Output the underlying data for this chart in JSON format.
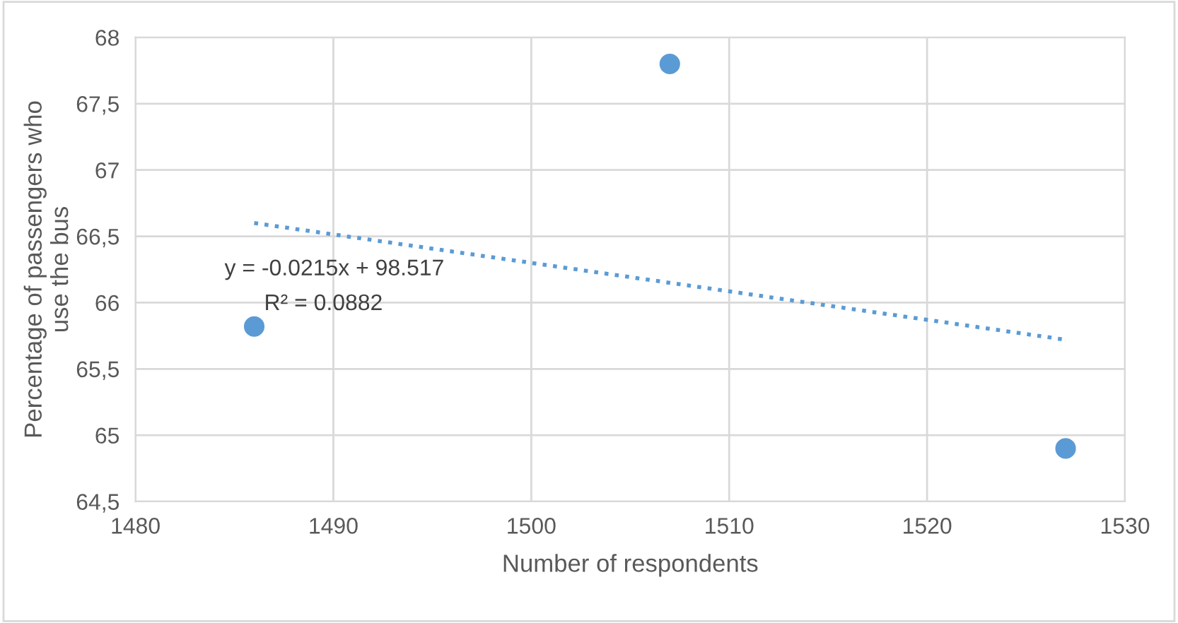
{
  "chart_data": {
    "type": "scatter",
    "xlabel": "Number of respondents",
    "ylabel": "Percentage of passengers who\nuse the bus",
    "series": [
      {
        "type": "scatter",
        "color": "#5b9bd5",
        "x": [
          1486,
          1507,
          1527
        ],
        "values": [
          65.82,
          67.8,
          64.9
        ],
        "marker": "circle"
      },
      {
        "type": "line",
        "color": "#5b9bd5",
        "x": [
          1486,
          1527
        ],
        "values": [
          66.6,
          65.72
        ],
        "line_style": "dotted",
        "marker": "none"
      }
    ],
    "annotations": [
      "y = -0.0215x + 98.517",
      "R² = 0.0882"
    ],
    "xlim": [
      1480,
      1530
    ],
    "xticks": [
      1480,
      1490,
      1500,
      1510,
      1520,
      1530
    ],
    "ylim": [
      64.5,
      68
    ],
    "yticks": [
      {
        "value": 64.5,
        "label": "64,5"
      },
      65,
      {
        "value": 65.5,
        "label": "65,5"
      },
      66,
      {
        "value": 66.5,
        "label": "66,5"
      },
      67,
      {
        "value": 67.5,
        "label": "67,5"
      },
      68
    ],
    "grid": true,
    "legend": false
  }
}
